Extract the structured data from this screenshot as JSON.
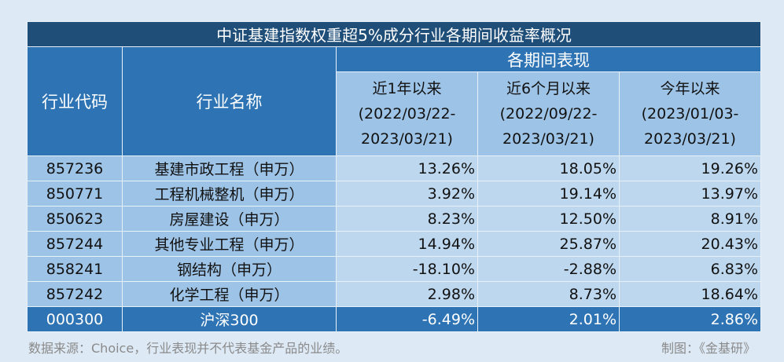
{
  "title": "中证基建指数权重超5%成分行业各期间收益率概况",
  "headers": {
    "code": "行业代码",
    "name": "行业名称",
    "group": "各期间表现",
    "periods": [
      {
        "label": "近1年以来",
        "range1": "(2022/03/22-",
        "range2": "2023/03/21)"
      },
      {
        "label": "近6个月以来",
        "range1": "(2022/09/22-",
        "range2": "2023/03/21)"
      },
      {
        "label": "今年以来",
        "range1": "(2023/01/03-",
        "range2": "2023/03/21)"
      }
    ]
  },
  "rows": [
    {
      "code": "857236",
      "name": "基建市政工程（申万）",
      "v": [
        "13.26%",
        "18.05%",
        "19.26%"
      ]
    },
    {
      "code": "850771",
      "name": "工程机械整机（申万）",
      "v": [
        "3.92%",
        "19.14%",
        "13.97%"
      ]
    },
    {
      "code": "850623",
      "name": "房屋建设（申万）",
      "v": [
        "8.23%",
        "12.50%",
        "8.91%"
      ]
    },
    {
      "code": "857244",
      "name": "其他专业工程（申万）",
      "v": [
        "14.94%",
        "25.87%",
        "20.43%"
      ]
    },
    {
      "code": "858241",
      "name": "钢结构（申万）",
      "v": [
        "-18.10%",
        "-2.88%",
        "6.83%"
      ]
    },
    {
      "code": "857242",
      "name": "化学工程（申万）",
      "v": [
        "2.98%",
        "8.73%",
        "18.64%"
      ]
    },
    {
      "code": "000300",
      "name": "沪深300",
      "v": [
        "-6.49%",
        "2.01%",
        "2.86%"
      ]
    }
  ],
  "footer": {
    "source": "数据来源：Choice，行业表现并不代表基金产品的业绩。",
    "credit": "制图：《金基研》"
  }
}
